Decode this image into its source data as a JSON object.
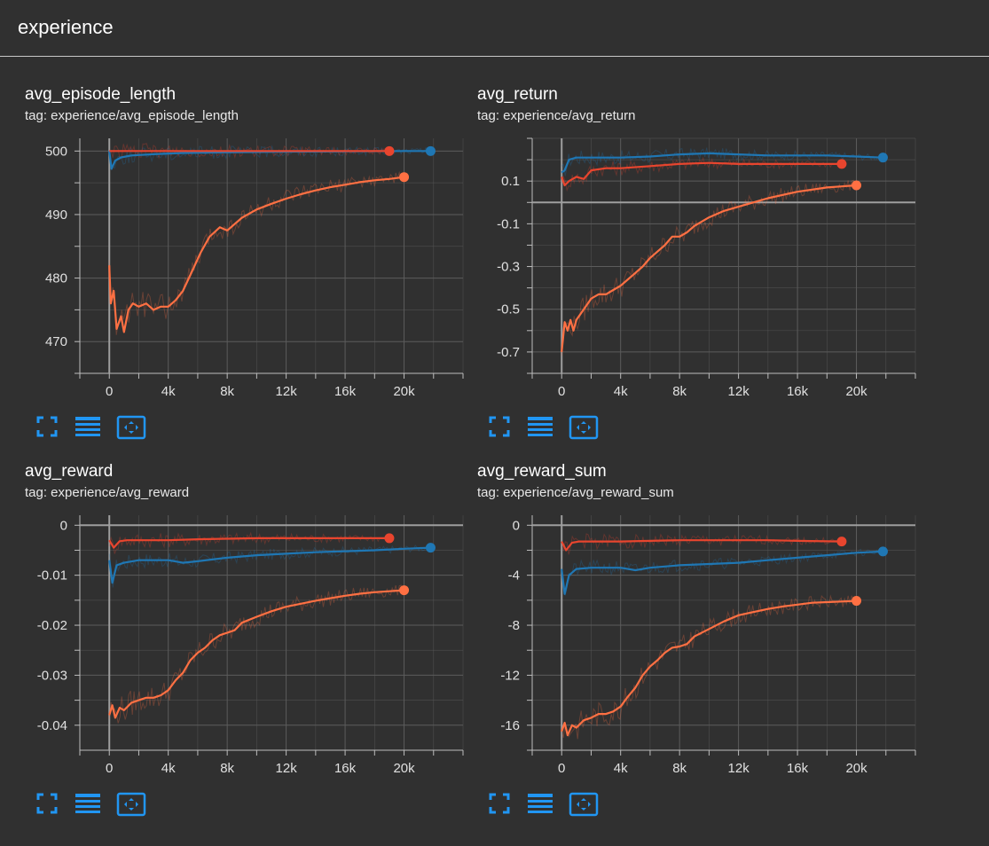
{
  "header": {
    "title": "experience"
  },
  "colors": {
    "blue": "#1f77b4",
    "red": "#e8452e",
    "orange": "#ff7043",
    "grid": "#5c5c5c",
    "axis": "#bdbdbd",
    "icon": "#2196f3"
  },
  "icons": [
    "fit-domain-icon",
    "data-table-icon",
    "zoom-reset-icon"
  ],
  "cards": [
    {
      "name": "avg_episode_length",
      "tag": "tag: experience/avg_episode_length"
    },
    {
      "name": "avg_return",
      "tag": "tag: experience/avg_return"
    },
    {
      "name": "avg_reward",
      "tag": "tag: experience/avg_reward"
    },
    {
      "name": "avg_reward_sum",
      "tag": "tag: experience/avg_reward_sum"
    }
  ],
  "chart_data": [
    {
      "type": "line",
      "title": "avg_episode_length",
      "xlim": [
        -2000,
        24000
      ],
      "ylim": [
        465,
        502
      ],
      "xticks": [
        0,
        4000,
        8000,
        12000,
        16000,
        20000
      ],
      "xtick_labels": [
        "0",
        "4k",
        "8k",
        "12k",
        "16k",
        "20k"
      ],
      "yticks": [
        500,
        490,
        480,
        470
      ],
      "ytick_labels": [
        "500",
        "490",
        "480",
        "470"
      ],
      "series": [
        {
          "name": "blue run",
          "color": "blue",
          "x": [
            0,
            150,
            400,
            800,
            1500,
            3000,
            5000,
            8000,
            12000,
            16000,
            20000,
            21800
          ],
          "y": [
            500,
            497.2,
            498.5,
            499.0,
            499.3,
            499.5,
            499.7,
            499.8,
            499.9,
            499.95,
            500,
            500
          ]
        },
        {
          "name": "red run",
          "color": "red",
          "x": [
            0,
            1000,
            4000,
            8000,
            12000,
            16000,
            19000
          ],
          "y": [
            500,
            500,
            500,
            500,
            500,
            500,
            500
          ]
        },
        {
          "name": "orange run",
          "color": "orange",
          "x": [
            0,
            100,
            300,
            500,
            800,
            1000,
            1300,
            1600,
            2000,
            2500,
            3000,
            3500,
            4000,
            4500,
            5000,
            5600,
            6200,
            6800,
            7500,
            8000,
            9000,
            10000,
            11000,
            12000,
            13000,
            14000,
            15000,
            16000,
            17000,
            18000,
            19000,
            20000
          ],
          "y": [
            482,
            476,
            478,
            472,
            474,
            471.5,
            475,
            476,
            475.5,
            476,
            475,
            475.5,
            475.5,
            476.5,
            478,
            481,
            484,
            486.5,
            488,
            487.5,
            489.5,
            490.8,
            491.7,
            492.5,
            493.2,
            493.8,
            494.3,
            494.7,
            495.1,
            495.4,
            495.6,
            495.9
          ]
        }
      ]
    },
    {
      "type": "line",
      "title": "avg_return",
      "xlim": [
        -2000,
        24000
      ],
      "ylim": [
        -0.8,
        0.3
      ],
      "xticks": [
        0,
        4000,
        8000,
        12000,
        16000,
        20000
      ],
      "xtick_labels": [
        "0",
        "4k",
        "8k",
        "12k",
        "16k",
        "20k"
      ],
      "yticks": [
        0.1,
        -0.1,
        -0.3,
        -0.5,
        -0.7
      ],
      "ytick_labels": [
        "0.1",
        "-0.1",
        "-0.3",
        "-0.5",
        "-0.7"
      ],
      "series": [
        {
          "name": "blue run",
          "color": "blue",
          "x": [
            0,
            200,
            500,
            1000,
            2000,
            4000,
            6000,
            8000,
            10000,
            12000,
            14000,
            16000,
            18000,
            20000,
            21800
          ],
          "y": [
            0.14,
            0.15,
            0.2,
            0.21,
            0.21,
            0.21,
            0.215,
            0.225,
            0.23,
            0.225,
            0.22,
            0.22,
            0.22,
            0.215,
            0.21
          ]
        },
        {
          "name": "red run",
          "color": "red",
          "x": [
            0,
            200,
            500,
            1000,
            1500,
            2000,
            3000,
            4000,
            6000,
            8000,
            10000,
            12000,
            14000,
            16000,
            19000
          ],
          "y": [
            0.12,
            0.08,
            0.1,
            0.12,
            0.11,
            0.15,
            0.16,
            0.16,
            0.17,
            0.18,
            0.185,
            0.18,
            0.18,
            0.18,
            0.18
          ]
        },
        {
          "name": "orange run",
          "color": "orange",
          "x": [
            0,
            200,
            400,
            600,
            800,
            1000,
            1500,
            2000,
            2500,
            3000,
            3500,
            4000,
            4500,
            5000,
            5500,
            6000,
            6500,
            7000,
            7500,
            8000,
            8500,
            9000,
            10000,
            11000,
            12000,
            13000,
            14000,
            15000,
            16000,
            17000,
            18000,
            19000,
            20000
          ],
          "y": [
            -0.7,
            -0.56,
            -0.6,
            -0.55,
            -0.6,
            -0.55,
            -0.5,
            -0.45,
            -0.43,
            -0.43,
            -0.41,
            -0.39,
            -0.36,
            -0.33,
            -0.3,
            -0.26,
            -0.23,
            -0.2,
            -0.16,
            -0.16,
            -0.14,
            -0.11,
            -0.07,
            -0.04,
            -0.02,
            0.0,
            0.02,
            0.035,
            0.05,
            0.06,
            0.07,
            0.075,
            0.08
          ]
        }
      ]
    },
    {
      "type": "line",
      "title": "avg_reward",
      "xlim": [
        -2000,
        24000
      ],
      "ylim": [
        -0.045,
        0.002
      ],
      "xticks": [
        0,
        4000,
        8000,
        12000,
        16000,
        20000
      ],
      "xtick_labels": [
        "0",
        "4k",
        "8k",
        "12k",
        "16k",
        "20k"
      ],
      "yticks": [
        0,
        -0.01,
        -0.02,
        -0.03,
        -0.04
      ],
      "ytick_labels": [
        "0",
        "-0.01",
        "-0.02",
        "-0.03",
        "-0.04"
      ],
      "series": [
        {
          "name": "blue run",
          "color": "blue",
          "x": [
            0,
            200,
            500,
            1000,
            2000,
            4000,
            5000,
            6000,
            8000,
            10000,
            12000,
            14000,
            16000,
            18000,
            20000,
            21800
          ],
          "y": [
            -0.007,
            -0.0115,
            -0.008,
            -0.0075,
            -0.007,
            -0.007,
            -0.0075,
            -0.0072,
            -0.0065,
            -0.006,
            -0.0057,
            -0.0054,
            -0.0052,
            -0.005,
            -0.0047,
            -0.0045
          ]
        },
        {
          "name": "red run",
          "color": "red",
          "x": [
            0,
            300,
            700,
            1200,
            2000,
            4000,
            6000,
            8000,
            10000,
            12000,
            14000,
            16000,
            19000
          ],
          "y": [
            -0.003,
            -0.0045,
            -0.0032,
            -0.003,
            -0.003,
            -0.003,
            -0.0028,
            -0.0027,
            -0.0026,
            -0.0026,
            -0.0026,
            -0.0026,
            -0.0026
          ]
        },
        {
          "name": "orange run",
          "color": "orange",
          "x": [
            0,
            200,
            400,
            700,
            1000,
            1500,
            2000,
            2500,
            3000,
            3500,
            4000,
            4500,
            5000,
            5500,
            6000,
            6500,
            7000,
            7500,
            8000,
            8500,
            9000,
            10000,
            11000,
            12000,
            13000,
            14000,
            15000,
            16000,
            17000,
            18000,
            19000,
            20000
          ],
          "y": [
            -0.038,
            -0.036,
            -0.0385,
            -0.0365,
            -0.037,
            -0.0355,
            -0.035,
            -0.0345,
            -0.0345,
            -0.034,
            -0.033,
            -0.031,
            -0.0295,
            -0.027,
            -0.0255,
            -0.0245,
            -0.023,
            -0.022,
            -0.0215,
            -0.021,
            -0.0195,
            -0.0183,
            -0.0172,
            -0.0163,
            -0.0157,
            -0.0151,
            -0.0146,
            -0.0141,
            -0.0137,
            -0.0134,
            -0.0132,
            -0.013
          ]
        }
      ]
    },
    {
      "type": "line",
      "title": "avg_reward_sum",
      "xlim": [
        -2000,
        24000
      ],
      "ylim": [
        -18,
        0.8
      ],
      "xticks": [
        0,
        4000,
        8000,
        12000,
        16000,
        20000
      ],
      "xtick_labels": [
        "0",
        "4k",
        "8k",
        "12k",
        "16k",
        "20k"
      ],
      "yticks": [
        0,
        -4,
        -8,
        -12,
        -16
      ],
      "ytick_labels": [
        "0",
        "-4",
        "-8",
        "-12",
        "-16"
      ],
      "series": [
        {
          "name": "blue run",
          "color": "blue",
          "x": [
            0,
            200,
            500,
            1000,
            2000,
            4000,
            5000,
            6000,
            8000,
            10000,
            12000,
            14000,
            16000,
            18000,
            20000,
            21800
          ],
          "y": [
            -3.5,
            -5.5,
            -4.0,
            -3.5,
            -3.4,
            -3.4,
            -3.6,
            -3.4,
            -3.2,
            -3.1,
            -3.0,
            -2.8,
            -2.6,
            -2.4,
            -2.2,
            -2.1
          ]
        },
        {
          "name": "red run",
          "color": "red",
          "x": [
            0,
            300,
            700,
            1200,
            2000,
            4000,
            6000,
            8000,
            10000,
            12000,
            14000,
            16000,
            19000
          ],
          "y": [
            -1.3,
            -2.0,
            -1.4,
            -1.3,
            -1.3,
            -1.3,
            -1.25,
            -1.2,
            -1.2,
            -1.2,
            -1.2,
            -1.25,
            -1.3
          ]
        },
        {
          "name": "orange run",
          "color": "orange",
          "x": [
            0,
            200,
            400,
            700,
            1000,
            1500,
            2000,
            2500,
            3000,
            3500,
            4000,
            4500,
            5000,
            5500,
            6000,
            6500,
            7000,
            7500,
            8000,
            8500,
            9000,
            10000,
            11000,
            12000,
            13000,
            14000,
            15000,
            16000,
            17000,
            18000,
            19000,
            20000
          ],
          "y": [
            -16.5,
            -15.8,
            -16.8,
            -16.0,
            -16.2,
            -15.6,
            -15.4,
            -15.1,
            -15.1,
            -14.9,
            -14.5,
            -13.7,
            -13.0,
            -12.0,
            -11.3,
            -10.8,
            -10.2,
            -9.8,
            -9.7,
            -9.5,
            -8.9,
            -8.3,
            -7.7,
            -7.2,
            -6.95,
            -6.7,
            -6.5,
            -6.35,
            -6.2,
            -6.15,
            -6.1,
            -6.05
          ]
        }
      ]
    }
  ]
}
